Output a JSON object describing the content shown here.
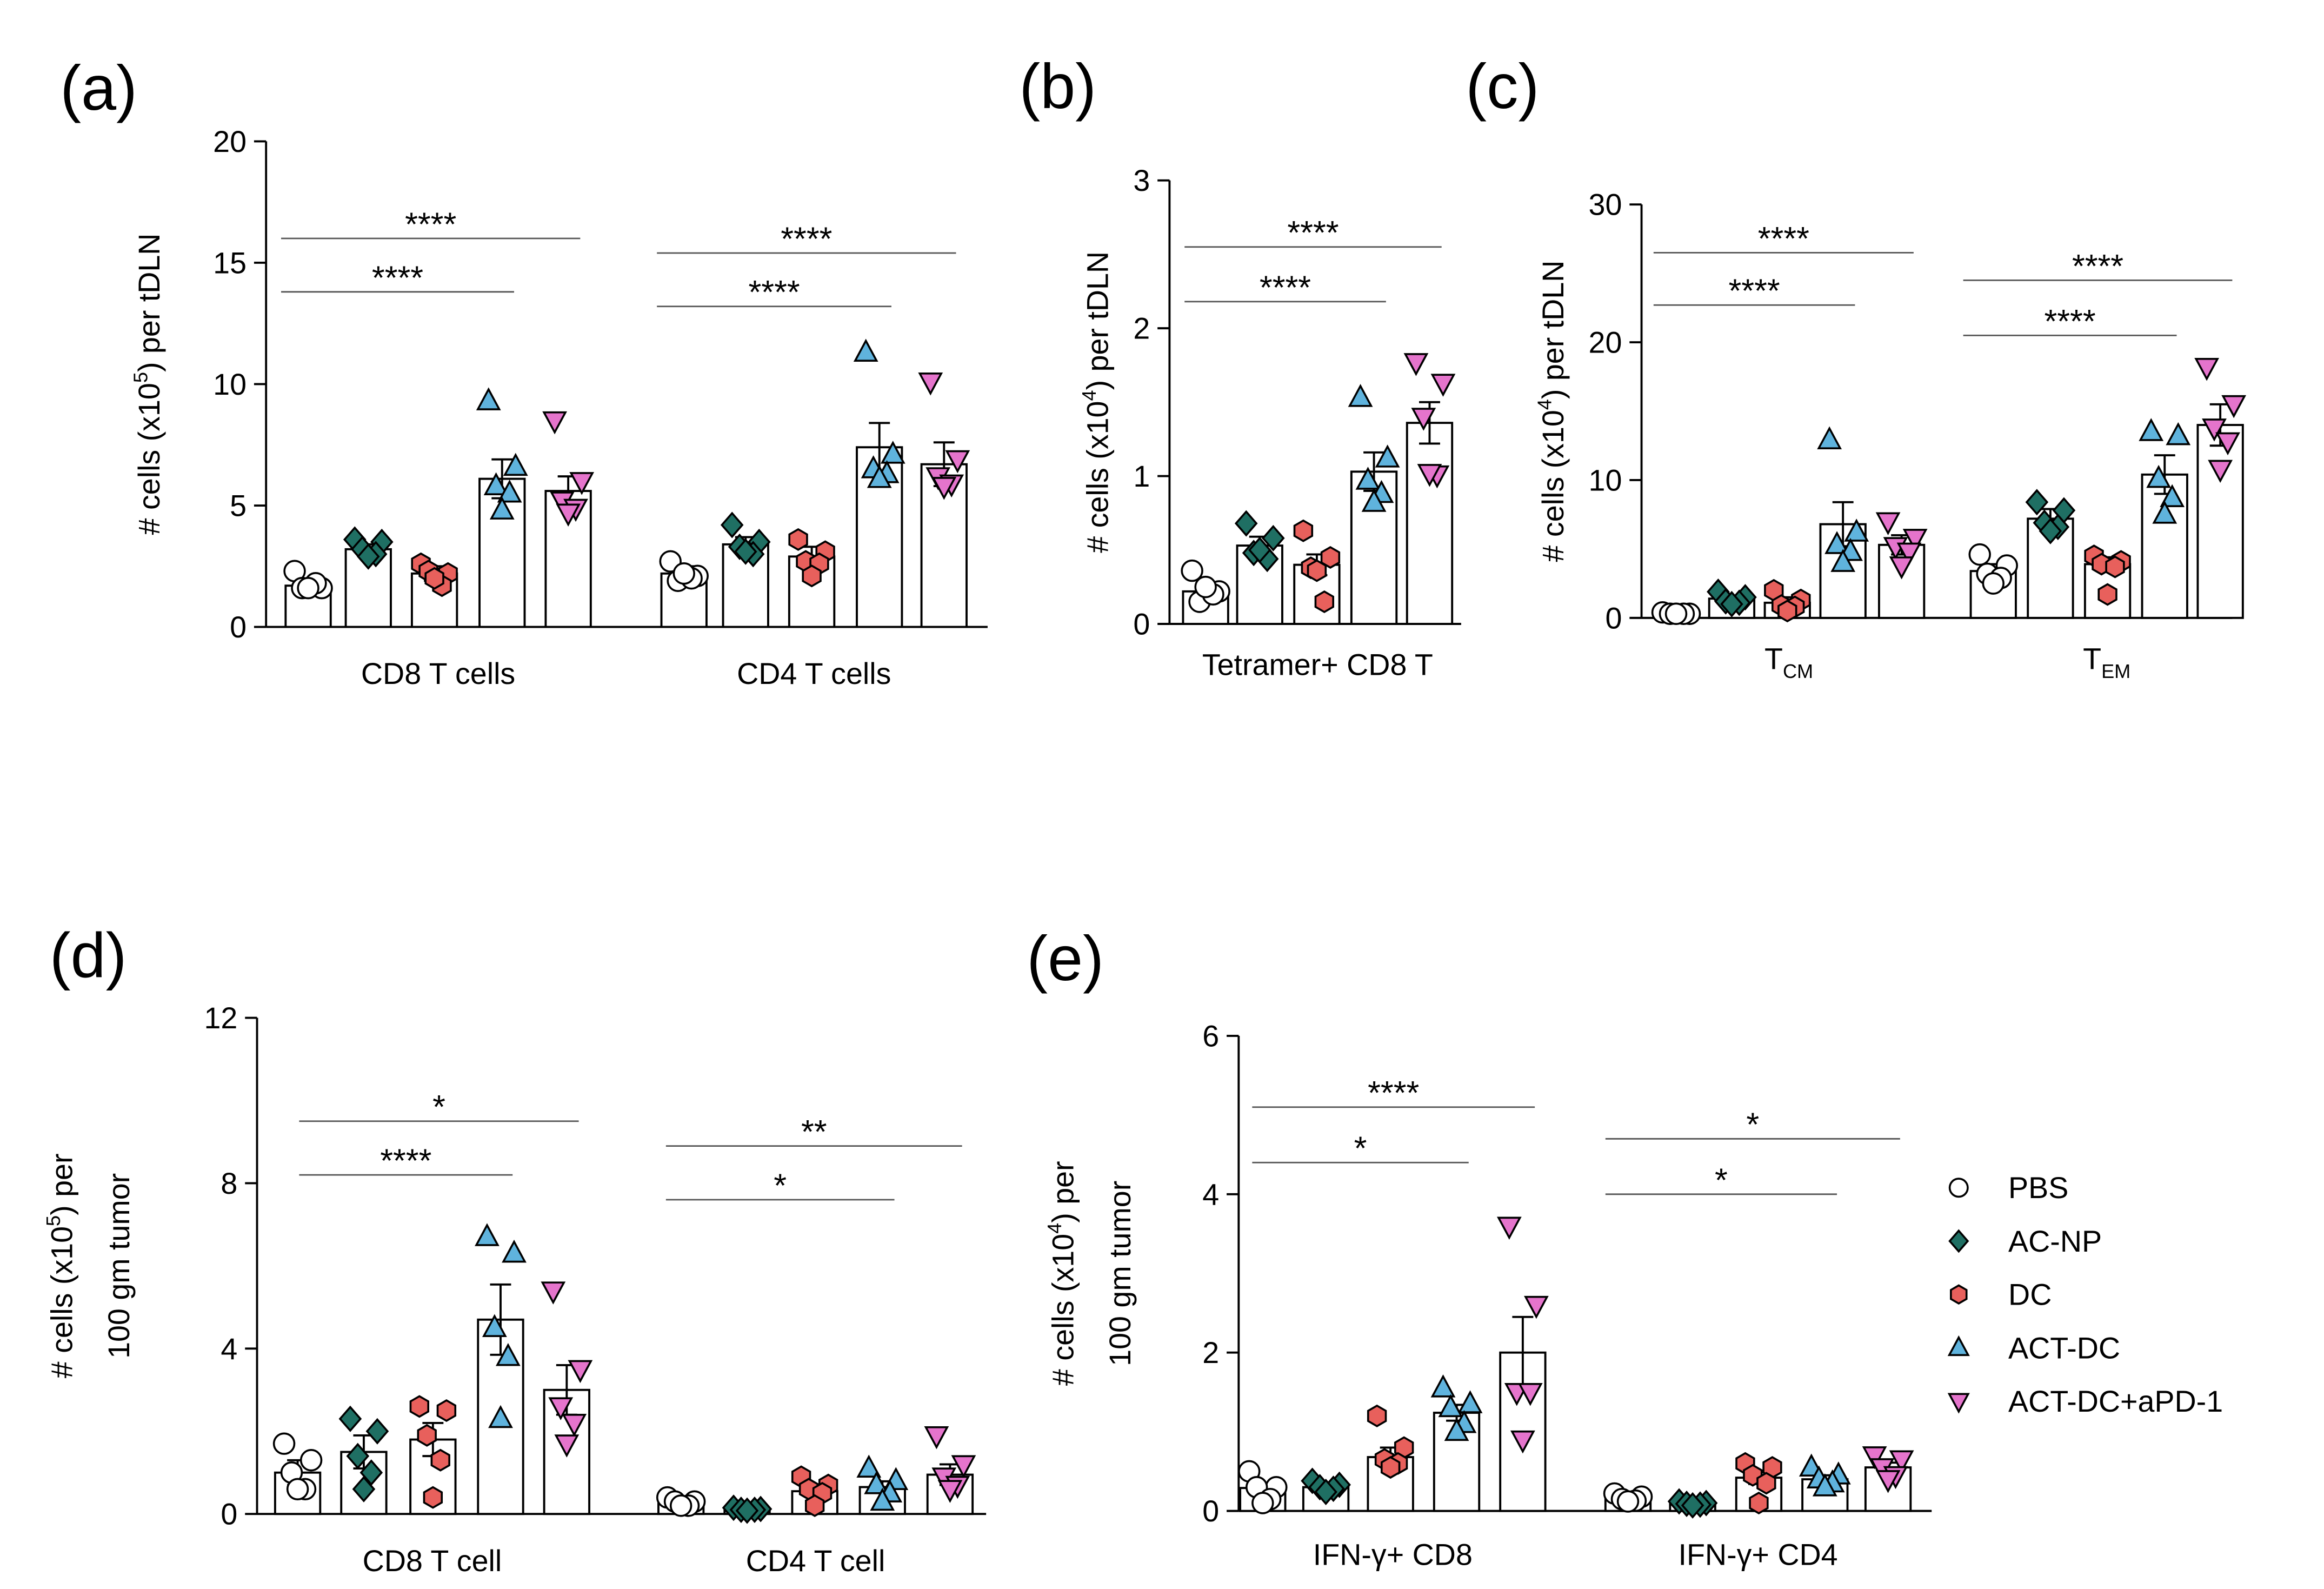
{
  "legend": {
    "entries": [
      {
        "label": "PBS",
        "marker": "circle",
        "color": "#ffffff"
      },
      {
        "label": "AC-NP",
        "marker": "diamond",
        "color": "#1f6f63"
      },
      {
        "label": "DC",
        "marker": "hexagon",
        "color": "#e8605c"
      },
      {
        "label": "ACT-DC",
        "marker": "triangle-up",
        "color": "#5fb3dd"
      },
      {
        "label": "ACT-DC+aPD-1",
        "marker": "triangle-down",
        "color": "#e574cc"
      }
    ]
  },
  "chart_data": [
    {
      "panel": "(a)",
      "type": "bar",
      "ylabel_parts": [
        "# cells (x10",
        "5",
        ") per tDLN"
      ],
      "ylim": [
        0,
        20
      ],
      "yticks": [
        0,
        5,
        10,
        15,
        20
      ],
      "groups": [
        {
          "label": "CD8 T cells",
          "label_parts": [
            "CD8 T cells"
          ],
          "means": [
            1.7,
            3.2,
            2.2,
            6.1,
            5.6
          ],
          "sem": [
            0.2,
            0.2,
            0.3,
            0.8,
            0.6
          ],
          "points": [
            [
              2.3,
              1.6,
              1.6,
              1.8,
              1.6
            ],
            [
              3.6,
              3.5,
              3.2,
              3.0,
              2.9
            ],
            [
              2.6,
              2.2,
              2.3,
              1.7,
              2.0
            ],
            [
              9.3,
              6.6,
              5.8,
              5.5,
              4.8
            ],
            [
              8.5,
              6.0,
              5.2,
              4.9,
              4.7
            ]
          ]
        },
        {
          "label": "CD4 T cells",
          "label_parts": [
            "CD4 T cells"
          ],
          "means": [
            2.2,
            3.4,
            2.9,
            7.4,
            6.7
          ],
          "sem": [
            0.3,
            0.3,
            0.4,
            1.0,
            0.9
          ],
          "points": [
            [
              2.7,
              2.1,
              1.9,
              2.0,
              2.2
            ],
            [
              4.2,
              3.5,
              3.3,
              3.0,
              3.1
            ],
            [
              3.6,
              3.1,
              2.7,
              2.6,
              2.1
            ],
            [
              11.3,
              7.1,
              6.5,
              6.3,
              6.1
            ],
            [
              10.1,
              6.9,
              6.2,
              5.9,
              5.8
            ]
          ]
        }
      ],
      "significance": [
        {
          "group": 0,
          "from": 0,
          "to": 3,
          "y": 13.8,
          "label": "****"
        },
        {
          "group": 0,
          "from": 0,
          "to": 4,
          "y": 16.0,
          "label": "****"
        },
        {
          "group": 1,
          "from": 0,
          "to": 3,
          "y": 13.2,
          "label": "****"
        },
        {
          "group": 1,
          "from": 0,
          "to": 4,
          "y": 15.4,
          "label": "****"
        }
      ]
    },
    {
      "panel": "(b)",
      "type": "bar",
      "ylabel_parts": [
        "# cells (x10",
        "4",
        ") per tDLN"
      ],
      "ylim": [
        0,
        3
      ],
      "yticks": [
        0,
        1,
        2,
        3
      ],
      "groups": [
        {
          "label": "Tetramer+ CD8 T",
          "label_parts": [
            "Tetramer+ CD8 T"
          ],
          "means": [
            0.22,
            0.53,
            0.4,
            1.03,
            1.36
          ],
          "sem": [
            0.04,
            0.06,
            0.07,
            0.13,
            0.14
          ],
          "points": [
            [
              0.36,
              0.22,
              0.15,
              0.2,
              0.25
            ],
            [
              0.68,
              0.58,
              0.48,
              0.44,
              0.5
            ],
            [
              0.63,
              0.45,
              0.38,
              0.15,
              0.36
            ],
            [
              1.53,
              1.12,
              0.97,
              0.88,
              0.82
            ],
            [
              1.77,
              1.63,
              1.4,
              1.01,
              1.02
            ]
          ]
        }
      ],
      "significance": [
        {
          "group": 0,
          "from": 0,
          "to": 3,
          "y": 2.18,
          "label": "****"
        },
        {
          "group": 0,
          "from": 0,
          "to": 4,
          "y": 2.55,
          "label": "****"
        }
      ]
    },
    {
      "panel": "(c)",
      "type": "bar",
      "ylabel_parts": [
        "# cells (x10",
        "4",
        ") per tDLN"
      ],
      "ylim": [
        0,
        30
      ],
      "yticks": [
        0,
        10,
        20,
        30
      ],
      "groups": [
        {
          "label": "TCM",
          "label_parts": [
            "T",
            "CM"
          ],
          "means": [
            0.3,
            1.4,
            1.1,
            6.8,
            5.3
          ],
          "sem": [
            0.1,
            0.2,
            0.4,
            1.6,
            0.7
          ],
          "points": [
            [
              0.4,
              0.3,
              0.3,
              0.3,
              0.3
            ],
            [
              1.9,
              1.5,
              1.2,
              1.1,
              1.0
            ],
            [
              2.0,
              1.3,
              0.9,
              0.8,
              0.5
            ],
            [
              12.9,
              6.2,
              5.3,
              4.8,
              4.0
            ],
            [
              7.0,
              5.8,
              5.2,
              4.8,
              3.8
            ]
          ]
        },
        {
          "label": "TEM",
          "label_parts": [
            "T",
            "EM"
          ],
          "means": [
            3.4,
            7.2,
            3.9,
            10.4,
            14.0
          ],
          "sem": [
            0.5,
            0.7,
            0.5,
            1.4,
            1.5
          ],
          "points": [
            [
              4.6,
              3.8,
              3.2,
              2.9,
              2.5
            ],
            [
              8.4,
              7.8,
              6.9,
              6.6,
              6.3
            ],
            [
              4.5,
              4.1,
              3.9,
              3.7,
              1.7
            ],
            [
              13.5,
              13.2,
              10.1,
              8.7,
              7.5
            ],
            [
              18.2,
              15.5,
              13.8,
              12.8,
              10.8
            ]
          ]
        }
      ],
      "significance": [
        {
          "group": 0,
          "from": 0,
          "to": 3,
          "y": 22.7,
          "label": "****"
        },
        {
          "group": 0,
          "from": 0,
          "to": 4,
          "y": 26.5,
          "label": "****"
        },
        {
          "group": 1,
          "from": 0,
          "to": 3,
          "y": 20.5,
          "label": "****"
        },
        {
          "group": 1,
          "from": 0,
          "to": 4,
          "y": 24.5,
          "label": "****"
        }
      ]
    },
    {
      "panel": "(d)",
      "type": "bar",
      "ylabel_parts": [
        "# cells (x10",
        "5",
        ") per"
      ],
      "ylabel_line2": "100 gm tumor",
      "ylim": [
        0,
        12
      ],
      "yticks": [
        0,
        4,
        8,
        12
      ],
      "groups": [
        {
          "label": "CD8 T cell",
          "label_parts": [
            "CD8 T cell"
          ],
          "means": [
            1.0,
            1.5,
            1.8,
            4.7,
            3.0
          ],
          "sem": [
            0.3,
            0.4,
            0.4,
            0.85,
            0.6
          ],
          "points": [
            [
              1.7,
              1.3,
              1.0,
              0.6,
              0.6
            ],
            [
              2.3,
              2.0,
              1.4,
              1.0,
              0.6
            ],
            [
              2.6,
              2.5,
              1.9,
              1.3,
              0.4
            ],
            [
              6.7,
              6.3,
              4.5,
              3.8,
              2.3
            ],
            [
              5.4,
              3.5,
              2.6,
              2.2,
              1.7
            ]
          ]
        },
        {
          "label": "CD4 T cell",
          "label_parts": [
            "CD4 T cell"
          ],
          "means": [
            0.28,
            0.12,
            0.55,
            0.65,
            0.95
          ],
          "sem": [
            0.06,
            0.03,
            0.12,
            0.14,
            0.25
          ],
          "points": [
            [
              0.4,
              0.3,
              0.3,
              0.2,
              0.2
            ],
            [
              0.15,
              0.12,
              0.1,
              0.1,
              0.08
            ],
            [
              0.9,
              0.7,
              0.6,
              0.5,
              0.2
            ],
            [
              1.1,
              0.8,
              0.7,
              0.5,
              0.3
            ],
            [
              1.9,
              1.2,
              0.9,
              0.7,
              0.6
            ]
          ]
        }
      ],
      "significance": [
        {
          "group": 0,
          "from": 0,
          "to": 3,
          "y": 8.2,
          "label": "****"
        },
        {
          "group": 0,
          "from": 0,
          "to": 4,
          "y": 9.5,
          "label": "*"
        },
        {
          "group": 1,
          "from": 0,
          "to": 3,
          "y": 7.6,
          "label": "*"
        },
        {
          "group": 1,
          "from": 0,
          "to": 4,
          "y": 8.9,
          "label": "**"
        }
      ]
    },
    {
      "panel": "(e)",
      "type": "bar",
      "ylabel_parts": [
        "# cells (x10",
        "4",
        ") per"
      ],
      "ylabel_line2": "100 gm tumor",
      "ylim": [
        0,
        6
      ],
      "yticks": [
        0,
        2,
        4,
        6
      ],
      "groups": [
        {
          "label": "IFN-γ+ CD8",
          "label_parts": [
            "IFN-γ+ CD8"
          ],
          "means": [
            0.29,
            0.3,
            0.68,
            1.24,
            2.0
          ],
          "sem": [
            0.06,
            0.03,
            0.12,
            0.1,
            0.45
          ],
          "points": [
            [
              0.5,
              0.3,
              0.3,
              0.15,
              0.1
            ],
            [
              0.38,
              0.33,
              0.3,
              0.28,
              0.24
            ],
            [
              1.2,
              0.8,
              0.65,
              0.6,
              0.55
            ],
            [
              1.55,
              1.35,
              1.3,
              1.1,
              1.0
            ],
            [
              3.6,
              2.6,
              1.5,
              1.5,
              0.9
            ]
          ]
        },
        {
          "label": "IFN-γ+ CD4",
          "label_parts": [
            "IFN-γ+ CD4"
          ],
          "means": [
            0.17,
            0.1,
            0.42,
            0.4,
            0.55
          ],
          "sem": [
            0.03,
            0.02,
            0.08,
            0.05,
            0.06
          ],
          "points": [
            [
              0.22,
              0.18,
              0.15,
              0.13,
              0.12
            ],
            [
              0.12,
              0.1,
              0.09,
              0.08,
              0.07
            ],
            [
              0.6,
              0.55,
              0.45,
              0.35,
              0.1
            ],
            [
              0.55,
              0.45,
              0.4,
              0.35,
              0.3
            ],
            [
              0.7,
              0.65,
              0.55,
              0.45,
              0.4
            ]
          ]
        }
      ],
      "significance": [
        {
          "group": 0,
          "from": 0,
          "to": 3,
          "y": 4.4,
          "label": "*"
        },
        {
          "group": 0,
          "from": 0,
          "to": 4,
          "y": 5.1,
          "label": "****"
        },
        {
          "group": 1,
          "from": 0,
          "to": 3,
          "y": 4.0,
          "label": "*"
        },
        {
          "group": 1,
          "from": 0,
          "to": 4,
          "y": 4.7,
          "label": "*"
        }
      ]
    }
  ]
}
